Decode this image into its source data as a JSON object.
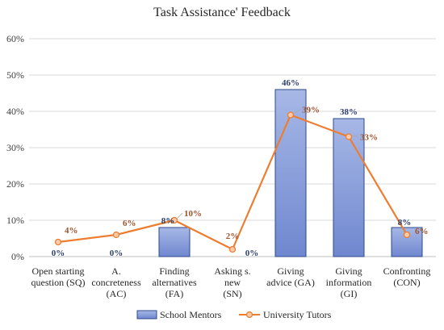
{
  "chart_data": {
    "type": "bar",
    "title": "Task Assistance' Feedback",
    "categories": [
      [
        "Open starting",
        "question (SQ)"
      ],
      [
        "A.",
        "concreteness",
        "(AC)"
      ],
      [
        "Finding",
        "alternatives",
        "(FA)"
      ],
      [
        "Asking s.",
        "new",
        "(SN)"
      ],
      [
        "Giving",
        "advice (GA)"
      ],
      [
        "Giving",
        "information",
        "(GI)"
      ],
      [
        "Confronting",
        "(CON)"
      ]
    ],
    "y_ticks": [
      "0%",
      "10%",
      "20%",
      "30%",
      "40%",
      "50%",
      "60%"
    ],
    "ylim": [
      0,
      60
    ],
    "grid": true,
    "legend_position": "bottom",
    "series": [
      {
        "name": "School Mentors",
        "kind": "bar",
        "values": [
          0,
          0,
          8,
          0,
          46,
          38,
          8
        ],
        "labels": [
          "0%",
          "0%",
          "8%",
          "0%",
          "46%",
          "38%",
          "8%"
        ],
        "color": "#7f96d8",
        "edge_color": "#2f4a8a"
      },
      {
        "name": "University Tutors",
        "kind": "line",
        "values": [
          4,
          6,
          10,
          2,
          39,
          33,
          6
        ],
        "labels": [
          "4%",
          "6%",
          "10%",
          "2%",
          "39%",
          "33%",
          "6%"
        ],
        "color": "#ed7d31"
      }
    ]
  }
}
